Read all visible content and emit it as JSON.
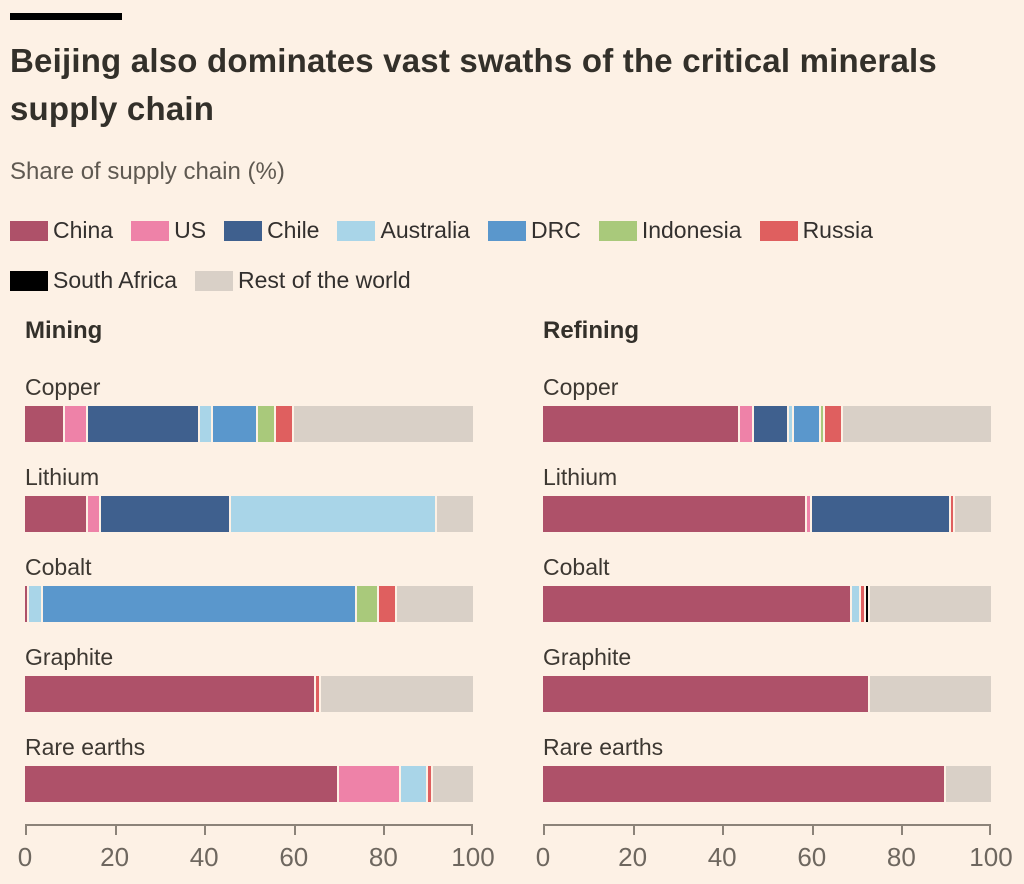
{
  "header": {
    "title_lines": [
      "Beijing also dominates vast swaths of the critical minerals",
      "supply chain"
    ],
    "title": "Beijing also dominates vast swaths of the critical minerals supply chain",
    "subtitle": "Share of supply chain (%)"
  },
  "colors": {
    "background": "#fdf1e5",
    "text_dark": "#33302a",
    "text_secondary": "#5f5951",
    "axis_line": "#8c8379",
    "axis_text": "#6e675f"
  },
  "palette": {
    "China": "#ae5169",
    "US": "#ee82a8",
    "Chile": "#3f608e",
    "Australia": "#a9d5e8",
    "DRC": "#5a97cc",
    "Indonesia": "#a9c97b",
    "Russia": "#df5f5f",
    "South Africa": "#000000",
    "Rest of the world": "#d9d0c7"
  },
  "legend": {
    "rows": [
      [
        "China",
        "US",
        "Chile",
        "Australia",
        "DRC",
        "Indonesia",
        "Russia"
      ],
      [
        "South Africa",
        "Rest of the world"
      ]
    ]
  },
  "chart_data": {
    "type": "bar",
    "variant": "horizontal-stacked",
    "unit": "%",
    "xlim": [
      0,
      100
    ],
    "x_ticks": [
      0,
      20,
      40,
      60,
      80,
      100
    ],
    "grid": false,
    "legend_position": "top",
    "categories": [
      "Copper",
      "Lithium",
      "Cobalt",
      "Graphite",
      "Rare earths"
    ],
    "series_names": [
      "China",
      "US",
      "Chile",
      "Australia",
      "DRC",
      "Indonesia",
      "Russia",
      "South Africa",
      "Rest of the world"
    ],
    "panels": [
      {
        "title": "Mining",
        "bars": [
          {
            "mineral": "Copper",
            "segments": [
              {
                "country": "China",
                "value": 9
              },
              {
                "country": "US",
                "value": 5
              },
              {
                "country": "Chile",
                "value": 25
              },
              {
                "country": "Australia",
                "value": 3
              },
              {
                "country": "DRC",
                "value": 10
              },
              {
                "country": "Indonesia",
                "value": 4
              },
              {
                "country": "Russia",
                "value": 4
              },
              {
                "country": "Rest of the world",
                "value": 40
              }
            ]
          },
          {
            "mineral": "Lithium",
            "segments": [
              {
                "country": "China",
                "value": 14
              },
              {
                "country": "US",
                "value": 3
              },
              {
                "country": "Chile",
                "value": 29
              },
              {
                "country": "Australia",
                "value": 46
              },
              {
                "country": "Rest of the world",
                "value": 8
              }
            ]
          },
          {
            "mineral": "Cobalt",
            "segments": [
              {
                "country": "China",
                "value": 1
              },
              {
                "country": "Australia",
                "value": 3
              },
              {
                "country": "DRC",
                "value": 70
              },
              {
                "country": "Indonesia",
                "value": 5
              },
              {
                "country": "Russia",
                "value": 4
              },
              {
                "country": "Rest of the world",
                "value": 17
              }
            ]
          },
          {
            "mineral": "Graphite",
            "segments": [
              {
                "country": "China",
                "value": 65
              },
              {
                "country": "Russia",
                "value": 1
              },
              {
                "country": "Rest of the world",
                "value": 34
              }
            ]
          },
          {
            "mineral": "Rare earths",
            "segments": [
              {
                "country": "China",
                "value": 70
              },
              {
                "country": "US",
                "value": 14
              },
              {
                "country": "Australia",
                "value": 6
              },
              {
                "country": "Russia",
                "value": 1
              },
              {
                "country": "Rest of the world",
                "value": 9
              }
            ]
          }
        ]
      },
      {
        "title": "Refining",
        "bars": [
          {
            "mineral": "Copper",
            "segments": [
              {
                "country": "China",
                "value": 44
              },
              {
                "country": "US",
                "value": 3
              },
              {
                "country": "Chile",
                "value": 8
              },
              {
                "country": "Australia",
                "value": 1
              },
              {
                "country": "DRC",
                "value": 6
              },
              {
                "country": "Indonesia",
                "value": 1
              },
              {
                "country": "Russia",
                "value": 4
              },
              {
                "country": "Rest of the world",
                "value": 33
              }
            ]
          },
          {
            "mineral": "Lithium",
            "segments": [
              {
                "country": "China",
                "value": 59
              },
              {
                "country": "US",
                "value": 1
              },
              {
                "country": "Chile",
                "value": 31
              },
              {
                "country": "Russia",
                "value": 1
              },
              {
                "country": "Rest of the world",
                "value": 8
              }
            ]
          },
          {
            "mineral": "Cobalt",
            "segments": [
              {
                "country": "China",
                "value": 69
              },
              {
                "country": "Australia",
                "value": 2
              },
              {
                "country": "Russia",
                "value": 1
              },
              {
                "country": "South Africa",
                "value": 1
              },
              {
                "country": "Rest of the world",
                "value": 27
              }
            ]
          },
          {
            "mineral": "Graphite",
            "segments": [
              {
                "country": "China",
                "value": 73
              },
              {
                "country": "Rest of the world",
                "value": 27
              }
            ]
          },
          {
            "mineral": "Rare earths",
            "segments": [
              {
                "country": "China",
                "value": 90
              },
              {
                "country": "Rest of the world",
                "value": 10
              }
            ]
          }
        ]
      }
    ]
  }
}
